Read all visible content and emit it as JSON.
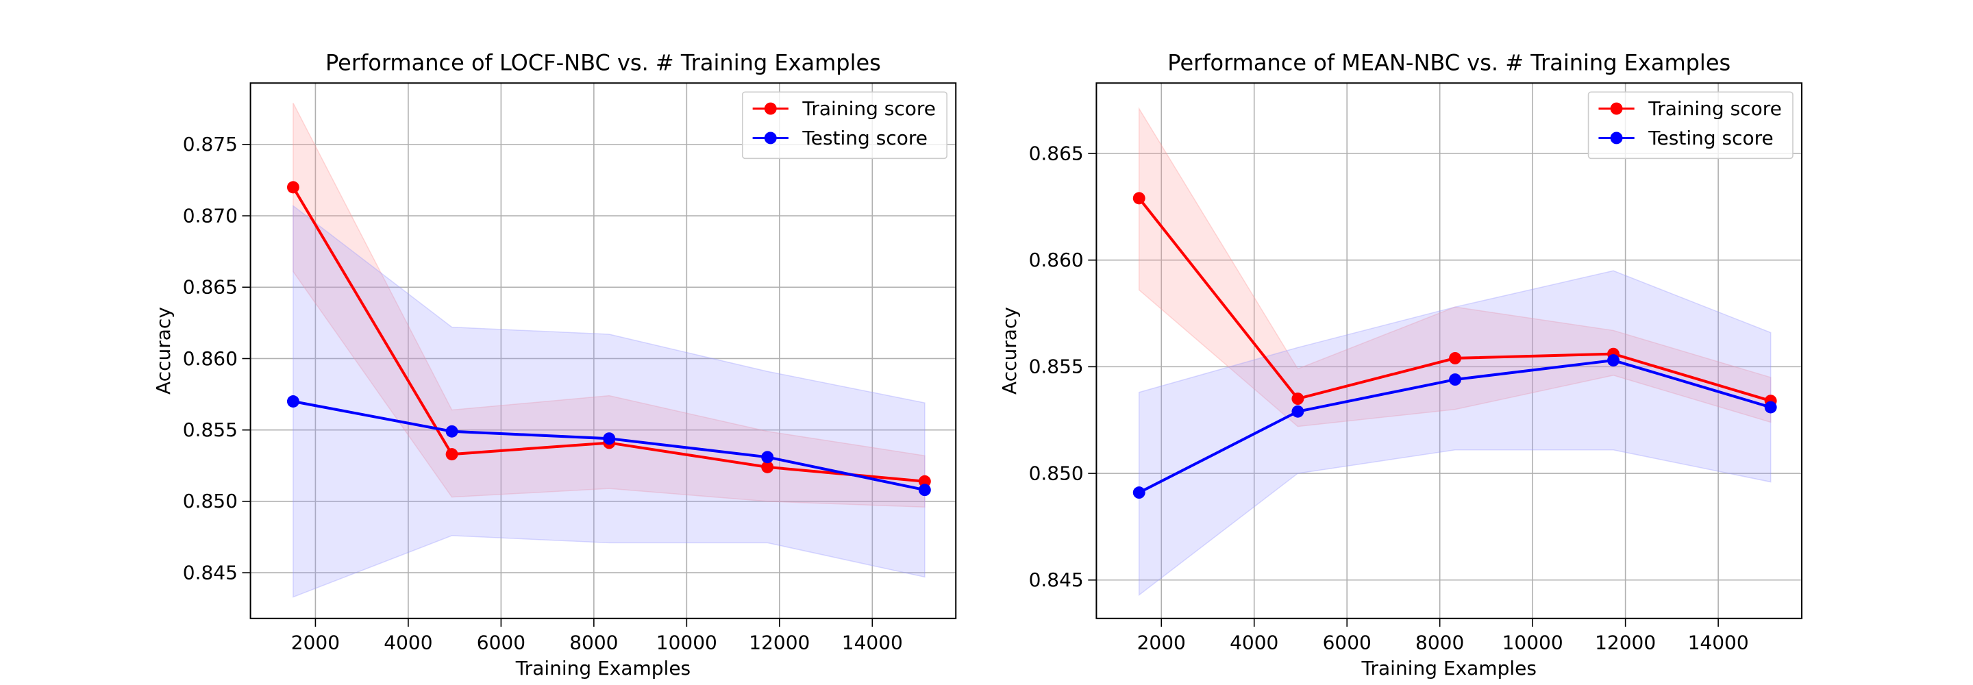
{
  "chart_data": [
    {
      "type": "line",
      "title": "Performance of LOCF-NBC vs. # Training Examples",
      "xlabel": "Training Examples",
      "ylabel": "Accuracy",
      "xlim": [
        600,
        15800
      ],
      "ylim": [
        0.8418,
        0.8793
      ],
      "xticks": [
        2000,
        4000,
        6000,
        8000,
        10000,
        12000,
        14000
      ],
      "yticks": [
        0.845,
        0.85,
        0.855,
        0.86,
        0.865,
        0.87,
        0.875
      ],
      "grid": true,
      "legend_position": "top-right",
      "x": [
        1520,
        4940,
        8330,
        11740,
        15130
      ],
      "series": [
        {
          "name": "Training score",
          "color": "#ff0000",
          "band_color": "#ff9999",
          "values": [
            0.872,
            0.8533,
            0.8541,
            0.8524,
            0.8514
          ],
          "lower": [
            0.8661,
            0.8503,
            0.8509,
            0.85,
            0.8496
          ],
          "upper": [
            0.8779,
            0.8564,
            0.8574,
            0.8549,
            0.8532
          ]
        },
        {
          "name": "Testing score",
          "color": "#0000ff",
          "band_color": "#9999ff",
          "values": [
            0.857,
            0.8549,
            0.8544,
            0.8531,
            0.8508
          ],
          "lower": [
            0.8433,
            0.8476,
            0.8471,
            0.8471,
            0.8447
          ],
          "upper": [
            0.8707,
            0.8622,
            0.8617,
            0.8591,
            0.8569
          ]
        }
      ]
    },
    {
      "type": "line",
      "title": "Performance of MEAN-NBC vs. # Training Examples",
      "xlabel": "Training Examples",
      "ylabel": "Accuracy",
      "xlim": [
        600,
        15800
      ],
      "ylim": [
        0.8432,
        0.8683
      ],
      "xticks": [
        2000,
        4000,
        6000,
        8000,
        10000,
        12000,
        14000
      ],
      "yticks": [
        0.845,
        0.85,
        0.855,
        0.86,
        0.865
      ],
      "grid": true,
      "legend_position": "top-right",
      "x": [
        1520,
        4940,
        8330,
        11740,
        15130
      ],
      "series": [
        {
          "name": "Training score",
          "color": "#ff0000",
          "band_color": "#ff9999",
          "values": [
            0.8629,
            0.8535,
            0.8554,
            0.8556,
            0.8534
          ],
          "lower": [
            0.8586,
            0.8522,
            0.853,
            0.8546,
            0.8524
          ],
          "upper": [
            0.8671,
            0.8549,
            0.8578,
            0.8567,
            0.8545
          ]
        },
        {
          "name": "Testing score",
          "color": "#0000ff",
          "band_color": "#9999ff",
          "values": [
            0.8491,
            0.8529,
            0.8544,
            0.8553,
            0.8531
          ],
          "lower": [
            0.8443,
            0.85,
            0.8511,
            0.8511,
            0.8496
          ],
          "upper": [
            0.8538,
            0.8559,
            0.8578,
            0.8595,
            0.8566
          ]
        }
      ]
    }
  ]
}
